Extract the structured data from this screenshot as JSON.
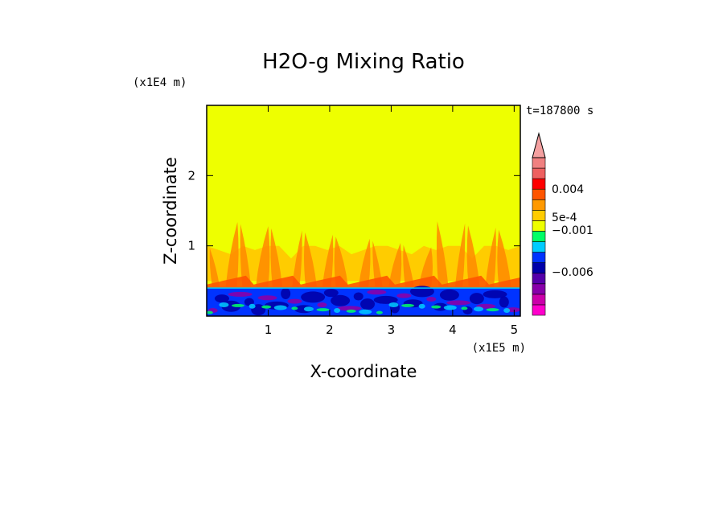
{
  "chart_data": {
    "type": "heatmap",
    "title": "H2O-g Mixing Ratio",
    "xlabel": "X-coordinate",
    "ylabel": "Z-coordinate",
    "x_multiplier": "(x1E5 m)",
    "y_multiplier": "(x1E4 m)",
    "time_label": "t=187800 s",
    "xlim": [
      0,
      5.1
    ],
    "ylim": [
      0,
      3.0
    ],
    "x_ticks": [
      1,
      2,
      3,
      4,
      5
    ],
    "x_tick_labels": [
      "1",
      "2",
      "3",
      "4",
      "5"
    ],
    "y_ticks": [
      1,
      2
    ],
    "y_tick_labels": [
      "1",
      "2"
    ],
    "colorbar": {
      "colors": [
        "#ff00cc",
        "#cc00aa",
        "#8800aa",
        "#5500aa",
        "#0000aa",
        "#0033ff",
        "#00ccff",
        "#00ff66",
        "#eeff00",
        "#ffcc00",
        "#ff9900",
        "#ff5500",
        "#ff0000",
        "#ee6060",
        "#f08080"
      ],
      "labels": [
        "0.004",
        "5e-4",
        "−0.001",
        "−0.006"
      ]
    },
    "colors": {
      "background_field": "#eeff00",
      "orange": "#ffcc00",
      "dark_orange": "#ff8800",
      "red_orange": "#ff5500",
      "blue": "#0033ff",
      "navy": "#0000aa",
      "purple": "#8800aa",
      "cyan": "#00ccff",
      "green": "#00ff66"
    }
  }
}
